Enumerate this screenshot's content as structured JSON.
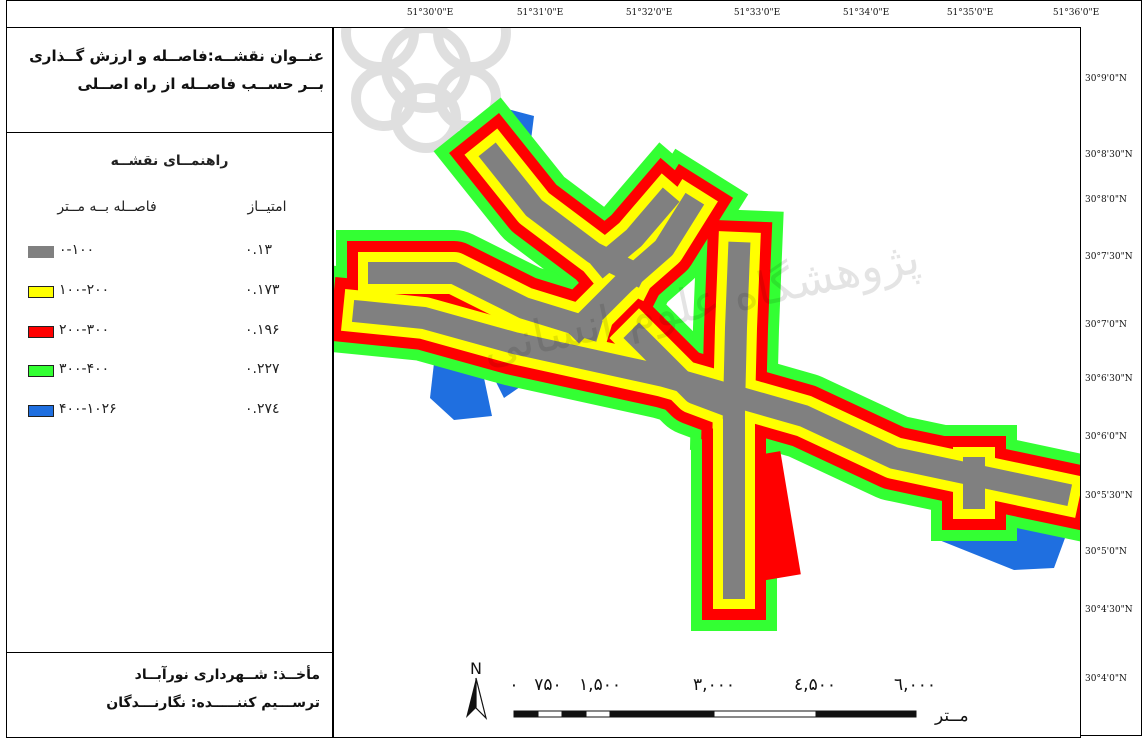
{
  "title": "عنــوان نقشــه:فاصــله و ارزش گــذاری بــر حســب فاصــله از راه اصــلی",
  "legend": {
    "heading": "راهنمــای نقشــه",
    "distance_header": "فاصــله بــه مــتر",
    "score_header": "امتیــاز",
    "items": [
      {
        "range": "۰-۱۰۰",
        "score": "۰.۱۳",
        "color": "#808080"
      },
      {
        "range": "۱۰۰-۲۰۰",
        "score": "۰.۱۷۳",
        "color": "#ffff00"
      },
      {
        "range": "۲۰۰-۳۰۰",
        "score": "۰.۱۹۶",
        "color": "#ff0000"
      },
      {
        "range": "۳۰۰-۴۰۰",
        "score": "۰.۲۲۷",
        "color": "#33ff33"
      },
      {
        "range": "۴۰۰-۱۰۲۶",
        "score": "۰.۲۷٤",
        "color": "#1f6fe0"
      }
    ]
  },
  "source": {
    "line1": "مأخــذ: شــهرداری نورآبــاد",
    "line2": "ترســـیم کننـــــده: نگارنـــدگان"
  },
  "longitude_labels": [
    "51°30'0\"E",
    "51°31'0\"E",
    "51°32'0\"E",
    "51°33'0\"E",
    "51°34'0\"E",
    "51°35'0\"E",
    "51°36'0\"E"
  ],
  "latitude_labels": [
    "30°9'0\"N",
    "30°8'30\"N",
    "30°8'0\"N",
    "30°7'30\"N",
    "30°7'0\"N",
    "30°6'30\"N",
    "30°6'0\"N",
    "30°5'30\"N",
    "30°5'0\"N",
    "30°4'30\"N",
    "30°4'0\"N"
  ],
  "north_label": "N",
  "scale_bar": {
    "ticks": [
      "۰",
      "۷۵۰",
      "۱,۵۰۰",
      "۳,۰۰۰",
      "٤,۵۰۰",
      "٦,۰۰۰"
    ],
    "unit": "مــتر"
  },
  "colors": {
    "gray": "#808080",
    "yellow": "#ffff00",
    "red": "#ff0000",
    "green": "#33ff33",
    "blue": "#1f6fe0"
  }
}
